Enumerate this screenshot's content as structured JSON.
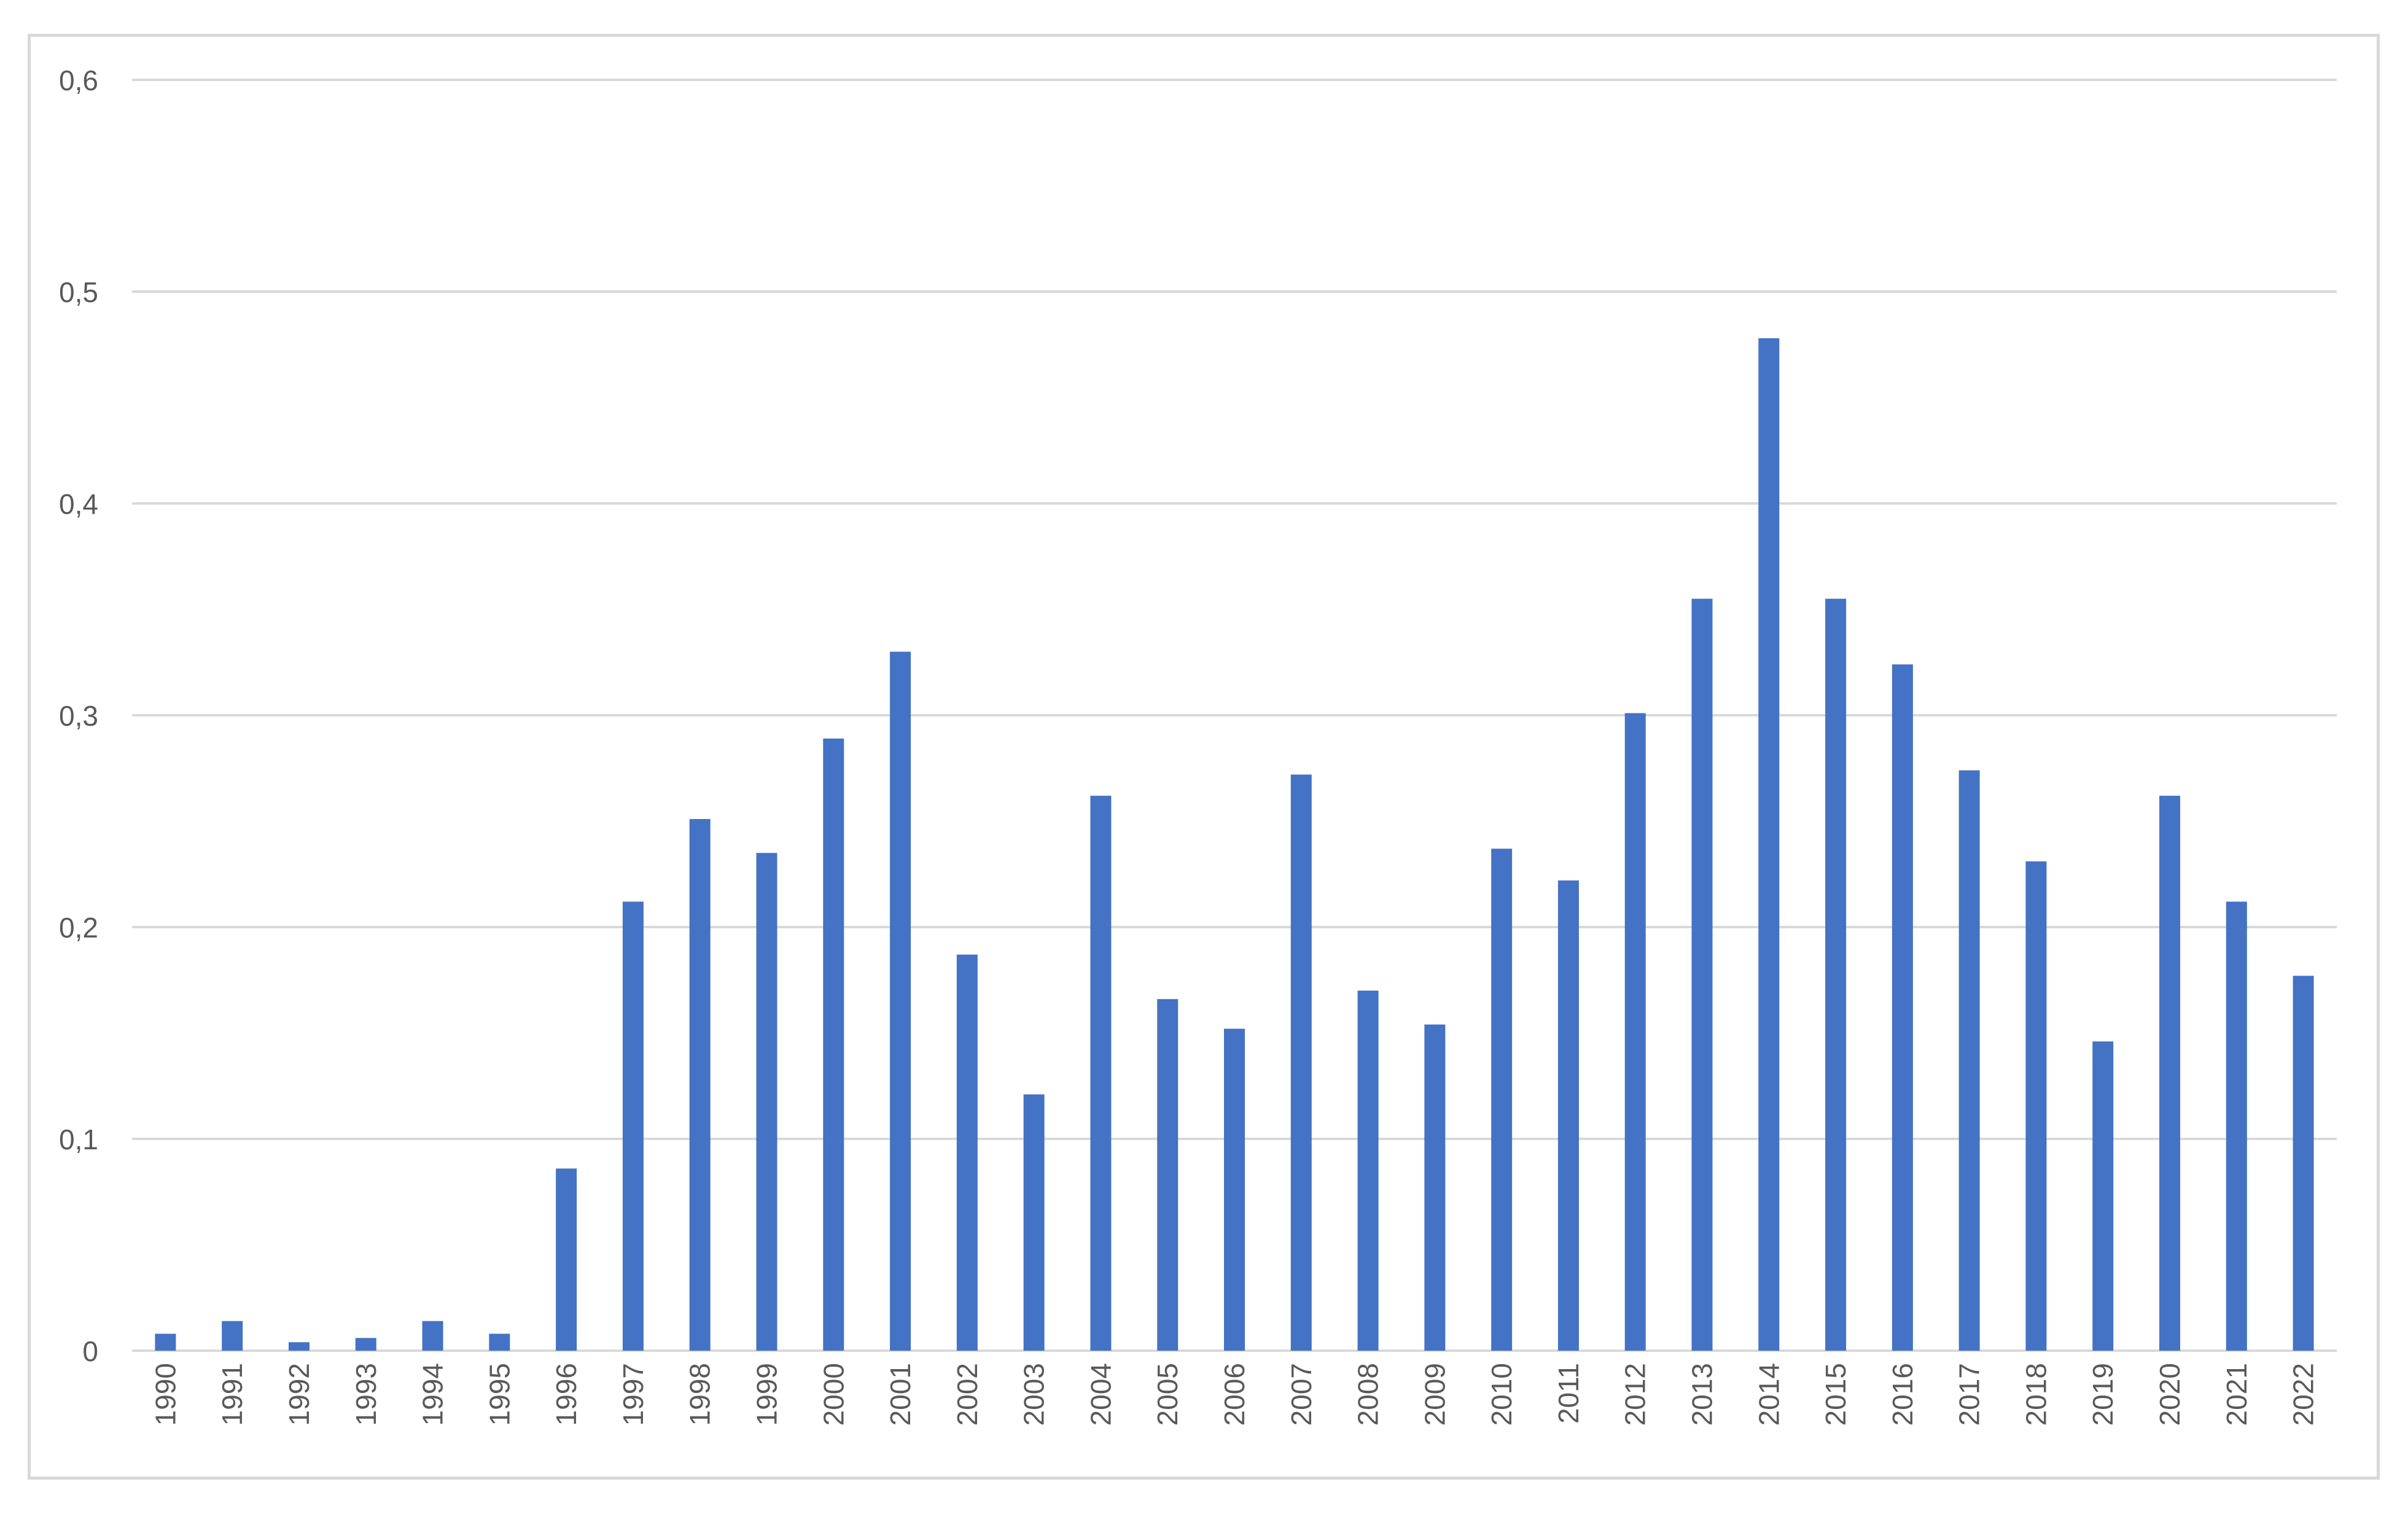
{
  "chart_data": {
    "type": "bar",
    "title": "",
    "xlabel": "",
    "ylabel": "",
    "ylim": [
      0,
      0.6
    ],
    "yticks": [
      "0",
      "0,1",
      "0,2",
      "0,3",
      "0,4",
      "0,5",
      "0,6"
    ],
    "grid": true,
    "legend": "none",
    "categories": [
      "1990",
      "1991",
      "1992",
      "1993",
      "1994",
      "1995",
      "1996",
      "1997",
      "1998",
      "1999",
      "2000",
      "2001",
      "2002",
      "2003",
      "2004",
      "2005",
      "2006",
      "2007",
      "2008",
      "2009",
      "2010",
      "2011",
      "2012",
      "2013",
      "2014",
      "2015",
      "2016",
      "2017",
      "2018",
      "2019",
      "2020",
      "2021",
      "2022"
    ],
    "values": [
      0.008,
      0.014,
      0.004,
      0.006,
      0.014,
      0.008,
      0.086,
      0.212,
      0.251,
      0.235,
      0.289,
      0.33,
      0.187,
      0.121,
      0.262,
      0.166,
      0.152,
      0.272,
      0.17,
      0.154,
      0.237,
      0.222,
      0.301,
      0.355,
      0.478,
      0.355,
      0.324,
      0.274,
      0.231,
      0.146,
      0.262,
      0.212,
      0.177
    ],
    "colors": {
      "bar": "#4472c4",
      "grid": "#d9d9d9",
      "text": "#595959",
      "border": "#d9d9d9"
    }
  }
}
